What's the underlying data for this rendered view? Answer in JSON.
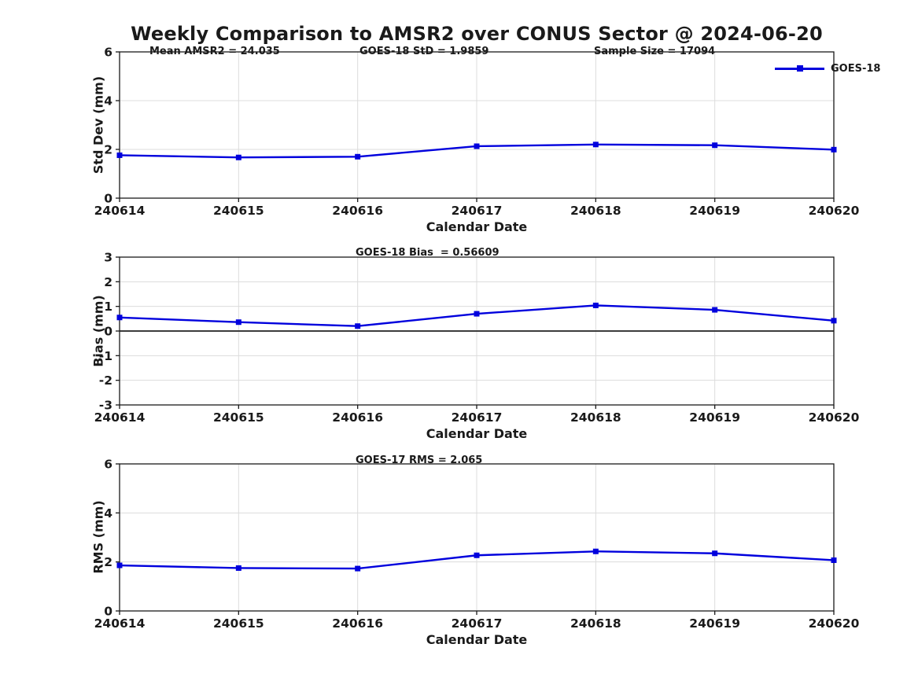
{
  "figure_title": "Weekly Comparison to AMSR2 over CONUS Sector @ 2024-06-20",
  "legend": {
    "label": "GOES-18",
    "position": "top-right-of-first-subplot"
  },
  "colors": {
    "series": "#0000dd",
    "grid": "#dcdcdc",
    "axis": "#1a1a1a",
    "zero_line": "#3c3c3c",
    "text": "#1a1a1a",
    "background": "#ffffff"
  },
  "chart_data": [
    {
      "type": "line",
      "ylabel": "Std Dev (mm)",
      "xlabel": "Calendar Date",
      "annotations": [
        "Mean AMSR2 = 24.035",
        "GOES-18 StD = 1.9859",
        "Sample Size = 17094"
      ],
      "categories": [
        "240614",
        "240615",
        "240616",
        "240617",
        "240618",
        "240619",
        "240620"
      ],
      "series": [
        {
          "name": "GOES-18",
          "values": [
            1.76,
            1.67,
            1.7,
            2.13,
            2.2,
            2.17,
            1.99
          ]
        }
      ],
      "ylim": [
        0,
        6
      ],
      "yticks": [
        0,
        2,
        4,
        6
      ],
      "grid": true,
      "zero_line": false,
      "marker": "square"
    },
    {
      "type": "line",
      "ylabel": "Bias (mm)",
      "xlabel": "Calendar Date",
      "annotations": [
        "GOES-18 Bias  = 0.56609"
      ],
      "categories": [
        "240614",
        "240615",
        "240616",
        "240617",
        "240618",
        "240619",
        "240620"
      ],
      "series": [
        {
          "name": "GOES-18",
          "values": [
            0.55,
            0.36,
            0.2,
            0.7,
            1.04,
            0.86,
            0.42
          ]
        }
      ],
      "ylim": [
        -3,
        3
      ],
      "yticks": [
        -3,
        -2,
        -1,
        0,
        1,
        2,
        3
      ],
      "grid": true,
      "zero_line": true,
      "marker": "square"
    },
    {
      "type": "line",
      "ylabel": "RMS (mm)",
      "xlabel": "Calendar Date",
      "annotations": [
        "GOES-17 RMS = 2.065"
      ],
      "categories": [
        "240614",
        "240615",
        "240616",
        "240617",
        "240618",
        "240619",
        "240620"
      ],
      "series": [
        {
          "name": "GOES-18",
          "values": [
            1.86,
            1.75,
            1.73,
            2.27,
            2.43,
            2.35,
            2.07
          ]
        }
      ],
      "ylim": [
        0,
        6
      ],
      "yticks": [
        0,
        2,
        4,
        6
      ],
      "grid": true,
      "zero_line": false,
      "marker": "square"
    }
  ]
}
